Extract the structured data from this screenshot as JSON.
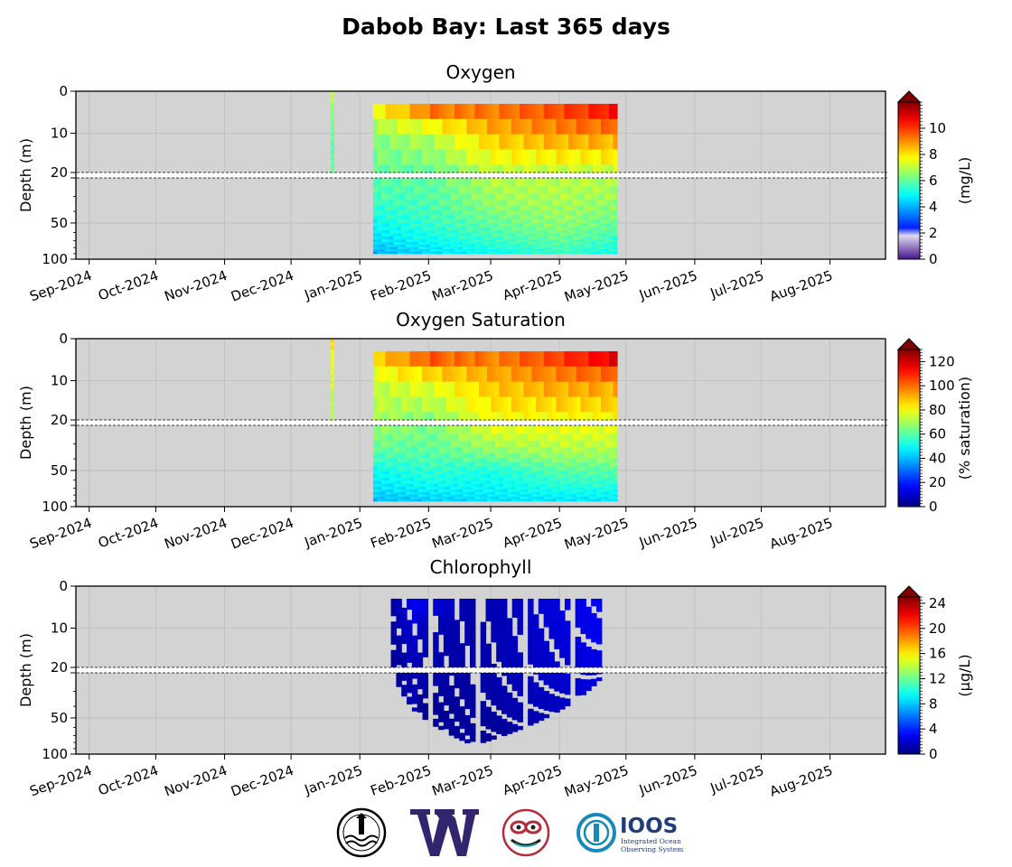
{
  "chart_data": [
    {
      "type": "heatmap",
      "title": "Oxygen",
      "ylabel": "Depth (m)",
      "colorbar_label": "(mg/L)",
      "colorbar_ticks": [
        0,
        2,
        4,
        6,
        8,
        10
      ],
      "colorbar_range": [
        0,
        12
      ],
      "colorbar_extend": "max",
      "colormap": "jet with white-purple low segment",
      "x_ticks": [
        "Sep-2024",
        "Oct-2024",
        "Nov-2024",
        "Dec-2024",
        "Jan-2025",
        "Feb-2025",
        "Mar-2025",
        "Apr-2025",
        "May-2025",
        "Jun-2025",
        "Jul-2025",
        "Aug-2025"
      ],
      "x_range": [
        "2024-08-26",
        "2025-08-26"
      ],
      "y_ticks_upper": [
        0,
        10,
        20
      ],
      "y_ticks_lower": [
        20,
        50,
        100
      ],
      "y_axis_break_at": 20,
      "data_extent": [
        "2024-12-18",
        "2025-04-28"
      ],
      "profiles": [
        {
          "date": "2024-12-19",
          "depth_max": 20,
          "values": [
            {
              "depth": 0,
              "value": 7
            },
            {
              "depth": 10,
              "value": 6
            },
            {
              "depth": 20,
              "value": 6
            }
          ]
        },
        {
          "date": "2025-01-07",
          "depth_max": 90,
          "values": [
            {
              "depth": 3,
              "value": 8
            },
            {
              "depth": 10,
              "value": 6.5
            },
            {
              "depth": 20,
              "value": 6
            },
            {
              "depth": 50,
              "value": 5
            },
            {
              "depth": 90,
              "value": 4
            }
          ]
        },
        {
          "date": "2025-02-01",
          "depth_max": 90,
          "values": [
            {
              "depth": 3,
              "value": 10
            },
            {
              "depth": 10,
              "value": 7
            },
            {
              "depth": 20,
              "value": 6
            },
            {
              "depth": 50,
              "value": 5.5
            },
            {
              "depth": 90,
              "value": 4.5
            }
          ]
        },
        {
          "date": "2025-03-01",
          "depth_max": 90,
          "values": [
            {
              "depth": 3,
              "value": 9.5
            },
            {
              "depth": 10,
              "value": 8.5
            },
            {
              "depth": 20,
              "value": 7
            },
            {
              "depth": 50,
              "value": 6
            },
            {
              "depth": 90,
              "value": 5
            }
          ]
        },
        {
          "date": "2025-04-01",
          "depth_max": 90,
          "values": [
            {
              "depth": 3,
              "value": 10
            },
            {
              "depth": 10,
              "value": 9
            },
            {
              "depth": 20,
              "value": 7
            },
            {
              "depth": 50,
              "value": 6.5
            },
            {
              "depth": 90,
              "value": 5.5
            }
          ]
        },
        {
          "date": "2025-04-27",
          "depth_max": 90,
          "values": [
            {
              "depth": 3,
              "value": 11
            },
            {
              "depth": 10,
              "value": 9
            },
            {
              "depth": 20,
              "value": 7
            },
            {
              "depth": 50,
              "value": 6
            },
            {
              "depth": 90,
              "value": 5
            }
          ]
        }
      ]
    },
    {
      "type": "heatmap",
      "title": "Oxygen Saturation",
      "ylabel": "Depth (m)",
      "colorbar_label": "(% saturation)",
      "colorbar_ticks": [
        0,
        20,
        40,
        60,
        80,
        100,
        120
      ],
      "colorbar_range": [
        0,
        130
      ],
      "colorbar_extend": "max",
      "colormap": "jet",
      "x_ticks": [
        "Sep-2024",
        "Oct-2024",
        "Nov-2024",
        "Dec-2024",
        "Jan-2025",
        "Feb-2025",
        "Mar-2025",
        "Apr-2025",
        "May-2025",
        "Jun-2025",
        "Jul-2025",
        "Aug-2025"
      ],
      "x_range": [
        "2024-08-26",
        "2025-08-26"
      ],
      "y_ticks_upper": [
        0,
        10,
        20
      ],
      "y_ticks_lower": [
        20,
        50,
        100
      ],
      "y_axis_break_at": 20,
      "data_extent": [
        "2024-12-18",
        "2025-04-28"
      ],
      "profiles": [
        {
          "date": "2024-12-19",
          "depth_max": 20,
          "values": [
            {
              "depth": 0,
              "value": 85
            },
            {
              "depth": 10,
              "value": 75
            },
            {
              "depth": 20,
              "value": 70
            }
          ]
        },
        {
          "date": "2025-01-07",
          "depth_max": 90,
          "values": [
            {
              "depth": 3,
              "value": 90
            },
            {
              "depth": 10,
              "value": 75
            },
            {
              "depth": 20,
              "value": 70
            },
            {
              "depth": 50,
              "value": 50
            },
            {
              "depth": 90,
              "value": 40
            }
          ]
        },
        {
          "date": "2025-02-01",
          "depth_max": 90,
          "values": [
            {
              "depth": 3,
              "value": 110
            },
            {
              "depth": 10,
              "value": 80
            },
            {
              "depth": 20,
              "value": 65
            },
            {
              "depth": 50,
              "value": 55
            },
            {
              "depth": 90,
              "value": 42
            }
          ]
        },
        {
          "date": "2025-03-01",
          "depth_max": 90,
          "values": [
            {
              "depth": 3,
              "value": 100
            },
            {
              "depth": 10,
              "value": 90
            },
            {
              "depth": 20,
              "value": 80
            },
            {
              "depth": 50,
              "value": 52
            },
            {
              "depth": 90,
              "value": 45
            }
          ]
        },
        {
          "date": "2025-04-01",
          "depth_max": 90,
          "values": [
            {
              "depth": 3,
              "value": 110
            },
            {
              "depth": 10,
              "value": 95
            },
            {
              "depth": 20,
              "value": 80
            },
            {
              "depth": 50,
              "value": 60
            },
            {
              "depth": 90,
              "value": 45
            }
          ]
        },
        {
          "date": "2025-04-27",
          "depth_max": 90,
          "values": [
            {
              "depth": 3,
              "value": 125
            },
            {
              "depth": 10,
              "value": 95
            },
            {
              "depth": 20,
              "value": 80
            },
            {
              "depth": 50,
              "value": 60
            },
            {
              "depth": 90,
              "value": 45
            }
          ]
        }
      ]
    },
    {
      "type": "heatmap",
      "title": "Chlorophyll",
      "ylabel": "Depth (m)",
      "colorbar_label": "(µg/L)",
      "colorbar_ticks": [
        0,
        4,
        8,
        12,
        16,
        20,
        24
      ],
      "colorbar_range": [
        0,
        25
      ],
      "colorbar_extend": "max",
      "colormap": "jet",
      "x_ticks": [
        "Sep-2024",
        "Oct-2024",
        "Nov-2024",
        "Dec-2024",
        "Jan-2025",
        "Feb-2025",
        "Mar-2025",
        "Apr-2025",
        "May-2025",
        "Jun-2025",
        "Jul-2025",
        "Aug-2025"
      ],
      "x_range": [
        "2024-08-26",
        "2025-08-26"
      ],
      "y_ticks_upper": [
        0,
        10,
        20
      ],
      "y_ticks_lower": [
        20,
        50,
        100
      ],
      "y_axis_break_at": 20,
      "data_extent": [
        "2024-12-18",
        "2025-04-28"
      ],
      "profiles": [
        {
          "date": "2025-01-15",
          "depth_max": 22,
          "values": [
            {
              "depth": 3,
              "value": 1
            },
            {
              "depth": 20,
              "value": 0.5
            }
          ]
        },
        {
          "date": "2025-01-25",
          "depth_max": 45,
          "values": [
            {
              "depth": 3,
              "value": 3
            },
            {
              "depth": 10,
              "value": 1.5
            },
            {
              "depth": 40,
              "value": 0.5
            }
          ]
        },
        {
          "date": "2025-02-20",
          "depth_max": 85,
          "values": [
            {
              "depth": 3,
              "value": 1
            },
            {
              "depth": 80,
              "value": 0.3
            }
          ]
        },
        {
          "date": "2025-04-20",
          "depth_max": 22,
          "values": [
            {
              "depth": 3,
              "value": 3
            },
            {
              "depth": 10,
              "value": 3.5
            },
            {
              "depth": 20,
              "value": 1
            }
          ]
        }
      ]
    }
  ],
  "figure": {
    "suptitle": "Dabob Bay: Last 365 days",
    "logos": [
      "UW oceanography seal",
      "UW W logo",
      "Tribal formline logo",
      "IOOS logo"
    ],
    "ioos_text": "IOOS",
    "ioos_subtext": [
      "Integrated Ocean",
      "Observing System"
    ]
  }
}
